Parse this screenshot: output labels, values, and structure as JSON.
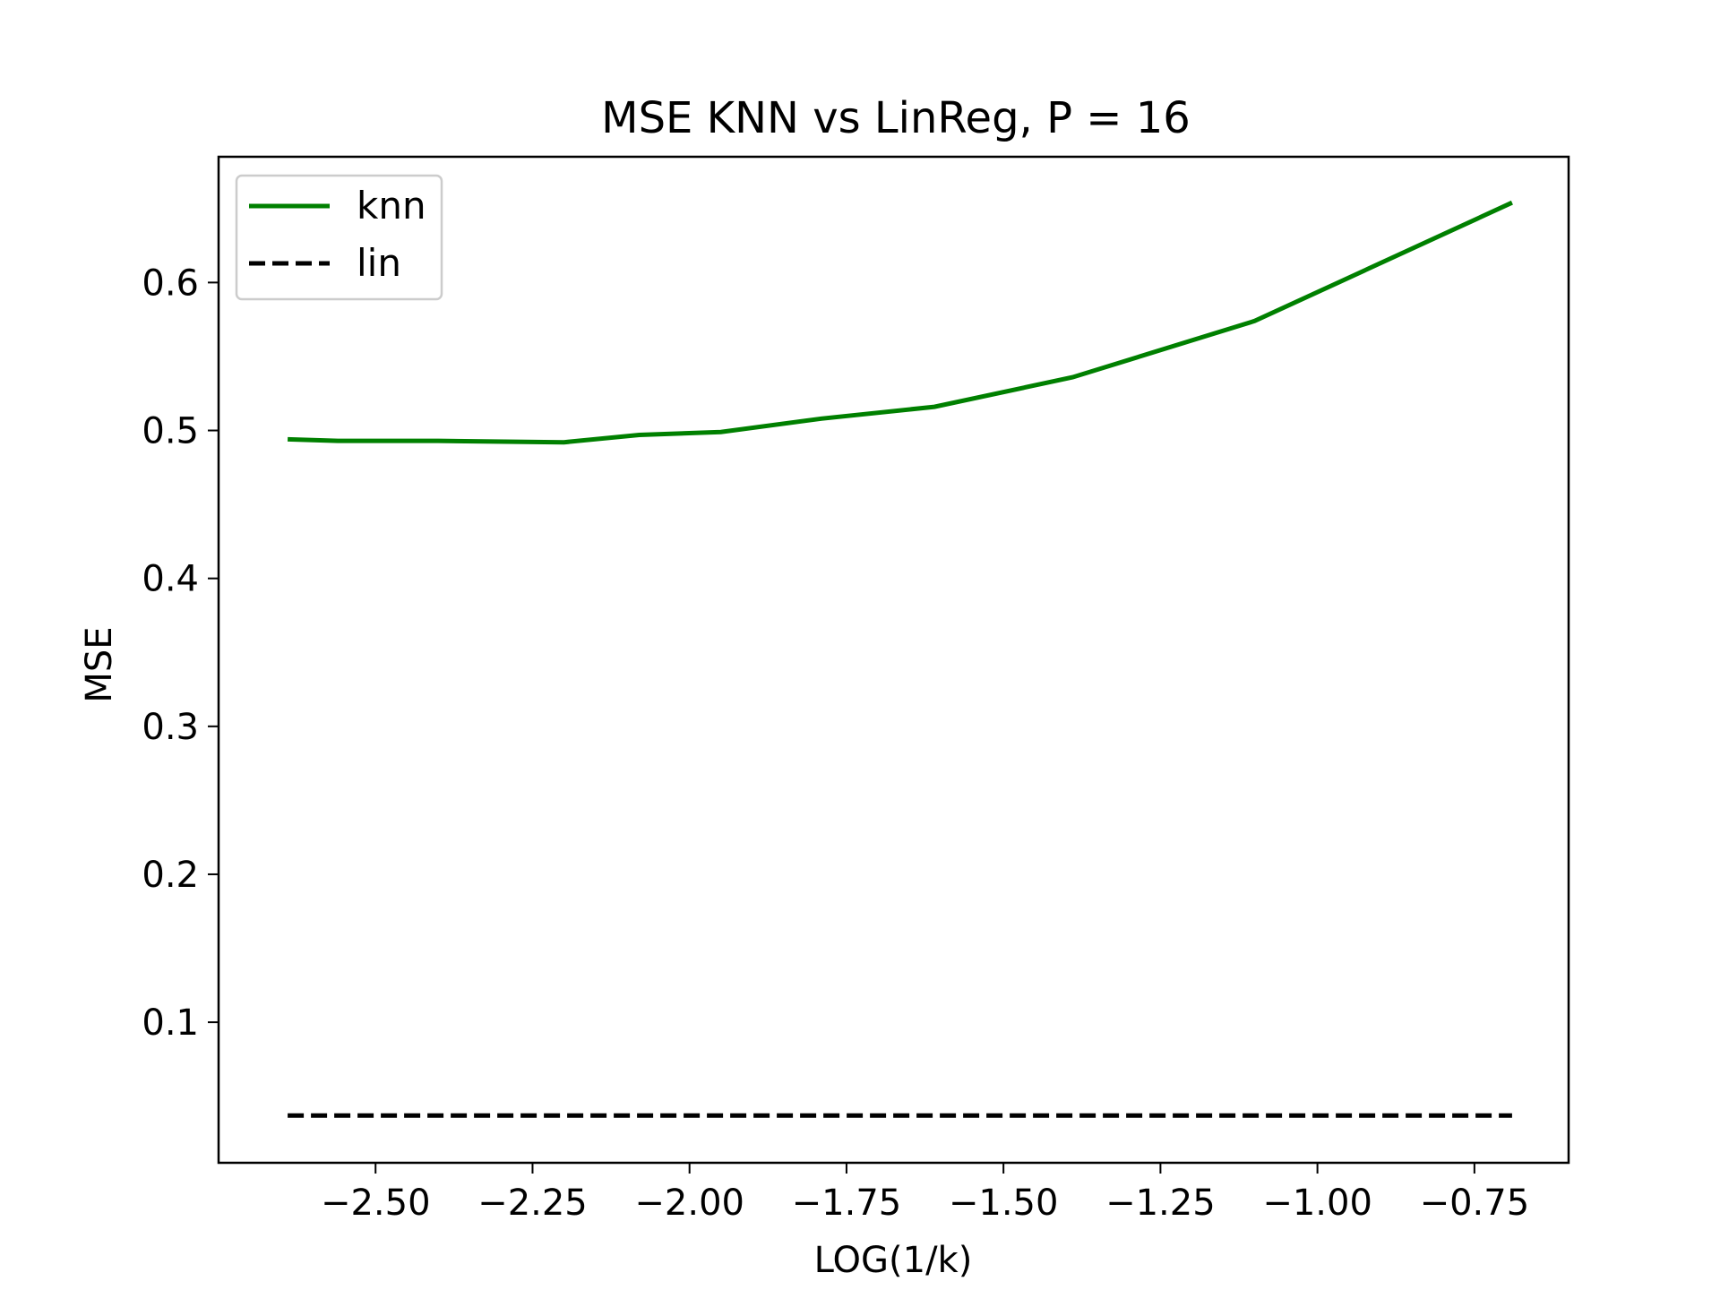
{
  "chart_data": {
    "type": "line",
    "title": "MSE KNN vs LinReg, P = 16",
    "xlabel": "LOG(1/k)",
    "ylabel": "MSE",
    "xlim": [
      -2.75,
      -0.6
    ],
    "ylim": [
      0.005,
      0.685
    ],
    "xticks": [
      -2.5,
      -2.25,
      -2.0,
      -1.75,
      -1.5,
      -1.25,
      -1.0,
      -0.75
    ],
    "xtick_labels": [
      "−2.50",
      "−2.25",
      "−2.00",
      "−1.75",
      "−1.50",
      "−1.25",
      "−1.00",
      "−0.75"
    ],
    "yticks": [
      0.1,
      0.2,
      0.3,
      0.4,
      0.5,
      0.6
    ],
    "ytick_labels": [
      "0.1",
      "0.2",
      "0.3",
      "0.4",
      "0.5",
      "0.6"
    ],
    "grid": false,
    "legend_position": "top-left",
    "series": [
      {
        "name": "knn",
        "color": "#008000",
        "style": "solid",
        "x": [
          -2.64,
          -2.56,
          -2.4,
          -2.2,
          -2.08,
          -1.95,
          -1.79,
          -1.61,
          -1.39,
          -1.1,
          -0.69
        ],
        "y": [
          0.494,
          0.493,
          0.493,
          0.492,
          0.497,
          0.499,
          0.508,
          0.516,
          0.536,
          0.574,
          0.654
        ]
      },
      {
        "name": "lin",
        "color": "#000000",
        "style": "dashed",
        "x": [
          -2.64,
          -0.69
        ],
        "y": [
          0.037,
          0.037
        ]
      }
    ]
  }
}
